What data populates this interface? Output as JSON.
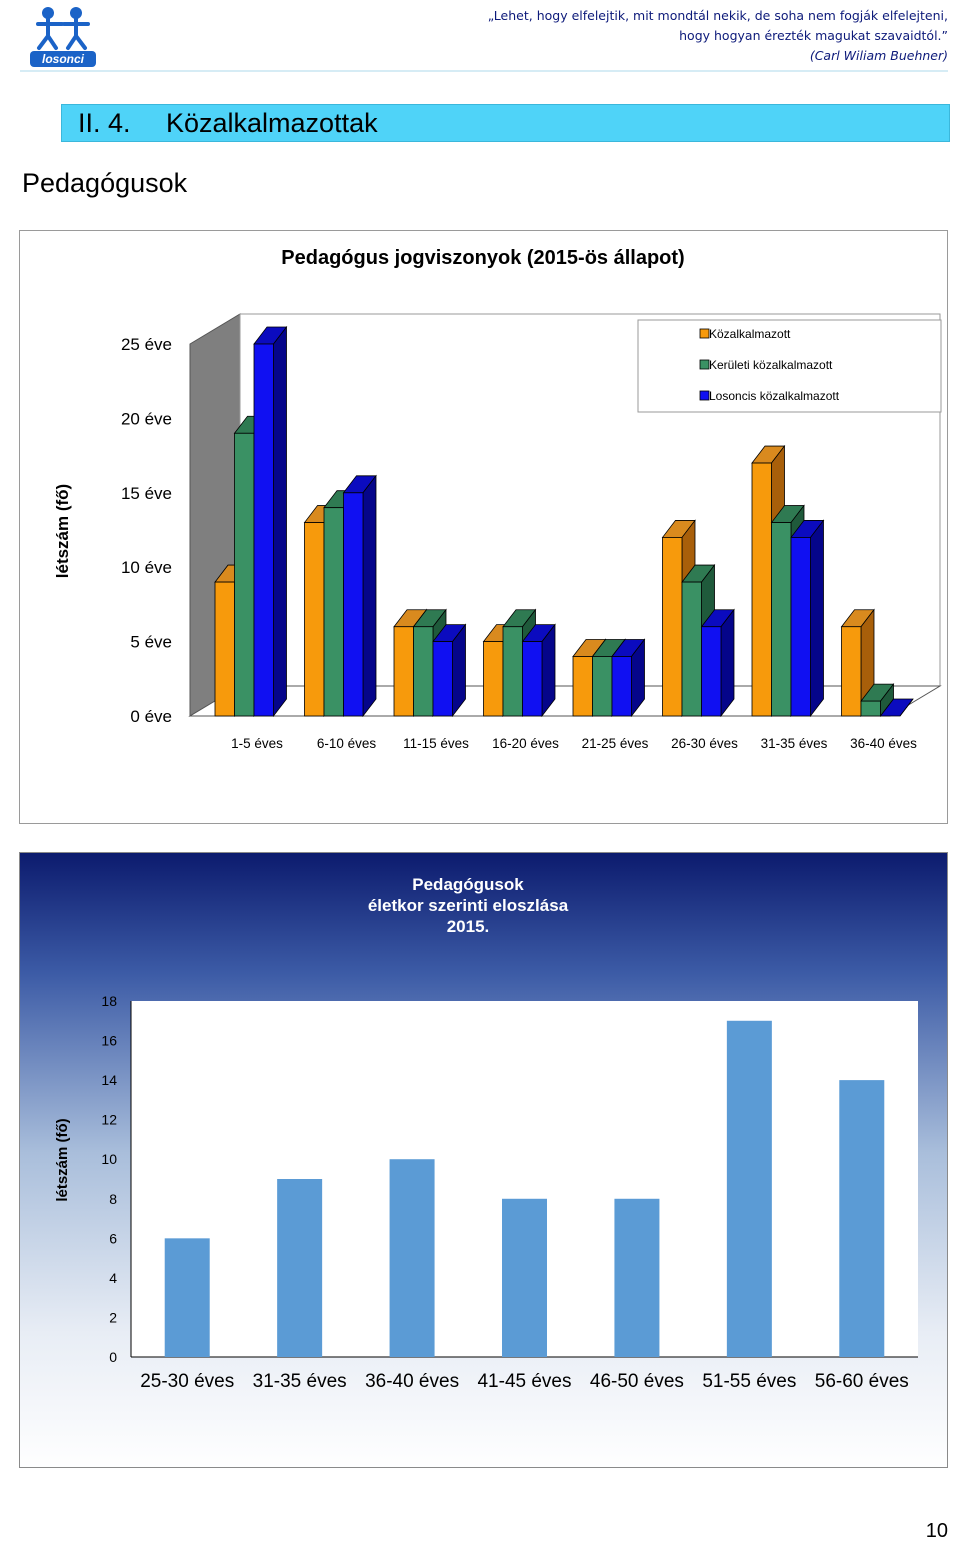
{
  "header": {
    "logo_text": "losonci",
    "quote_line1": "„Lehet, hogy elfelejtik, mit mondtál nekik, de soha nem fogják elfelejteni,",
    "quote_line2": "hogy hogyan érezték magukat szavaidtól.”",
    "quote_author": "(Carl Wiliam Buehner)"
  },
  "section": {
    "number": "II. 4.",
    "title": "Közalkalmazottak"
  },
  "subheading": "Pedagógusok",
  "chart1": {
    "title": "Pedagógus jogviszonyok (2015-ös állapot)",
    "ylabel": "létszám (fő)",
    "yticks": [
      "0 éve",
      "5 éve",
      "10 éve",
      "15 éve",
      "20 éve",
      "25 éve"
    ],
    "legend": [
      "Közalkalmazott",
      "Kerületi közalkalmazott",
      "Losoncis közalkalmazott"
    ],
    "colors": {
      "front": [
        "#f79a0c",
        "#3a9164",
        "#1010f2"
      ],
      "top": [
        "#d98a1e",
        "#2f7a52",
        "#0b0bbf"
      ],
      "side": [
        "#a85f0a",
        "#1f5a3b",
        "#05058a"
      ]
    }
  },
  "chart_data": [
    {
      "type": "bar",
      "title": "Pedagógus jogviszonyok (2015-ös állapot)",
      "xlabel": "",
      "ylabel": "létszám (fő)",
      "ylim": [
        0,
        25
      ],
      "categories": [
        "1-5 éves",
        "6-10 éves",
        "11-15 éves",
        "16-20 éves",
        "21-25 éves",
        "26-30 éves",
        "31-35 éves",
        "36-40 éves"
      ],
      "series": [
        {
          "name": "Közalkalmazott",
          "values": [
            9,
            13,
            6,
            5,
            4,
            12,
            17,
            6
          ]
        },
        {
          "name": "Kerületi közalkalmazott",
          "values": [
            19,
            14,
            6,
            6,
            4,
            9,
            13,
            1
          ]
        },
        {
          "name": "Losoncis közalkalmazott",
          "values": [
            25,
            15,
            5,
            5,
            4,
            6,
            12,
            0
          ]
        }
      ],
      "legend": "top-right",
      "grid": false
    },
    {
      "type": "bar",
      "title": "Pedagógusok életkor szerinti eloszlása 2015.",
      "xlabel": "",
      "ylabel": "létszám (fő)",
      "ylim": [
        0,
        18
      ],
      "yticks": [
        0,
        2,
        4,
        6,
        8,
        10,
        12,
        14,
        16,
        18
      ],
      "categories": [
        "25-30 éves",
        "31-35 éves",
        "36-40 éves",
        "41-45 éves",
        "46-50 éves",
        "51-55 éves",
        "56-60 éves"
      ],
      "values": [
        6,
        9,
        10,
        8,
        8,
        17,
        14
      ],
      "color": "#5b9bd5",
      "grid": false
    }
  ],
  "chart2": {
    "title_line1": "Pedagógusok",
    "title_line2": "életkor szerinti eloszlása",
    "title_line3": "2015.",
    "ylabel": "létszám (fő)",
    "color": "#5b9bd5"
  },
  "page_number": "10"
}
